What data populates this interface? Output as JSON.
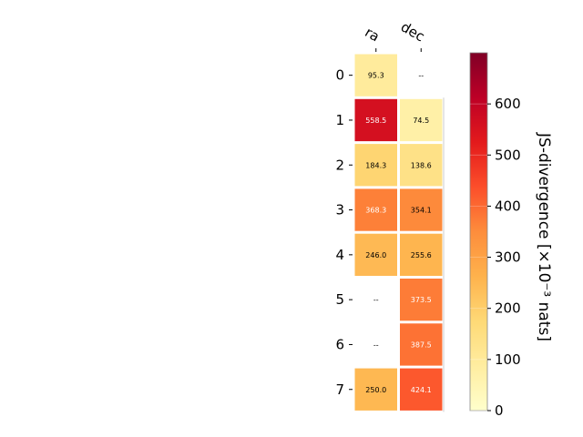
{
  "chart_data": {
    "type": "heatmap",
    "columns": [
      "ra",
      "dec"
    ],
    "rows": [
      "0",
      "1",
      "2",
      "3",
      "4",
      "5",
      "6",
      "7"
    ],
    "values": [
      [
        95.3,
        null
      ],
      [
        558.5,
        74.5
      ],
      [
        184.3,
        138.6
      ],
      [
        368.3,
        354.1
      ],
      [
        246.0,
        255.6
      ],
      [
        null,
        373.5
      ],
      [
        null,
        387.5
      ],
      [
        250.0,
        424.1
      ]
    ],
    "cell_labels": [
      [
        "95.3",
        "--"
      ],
      [
        "558.5",
        "74.5"
      ],
      [
        "184.3",
        "138.6"
      ],
      [
        "368.3",
        "354.1"
      ],
      [
        "246.0",
        "255.6"
      ],
      [
        "--",
        "373.5"
      ],
      [
        "--",
        "387.5"
      ],
      [
        "250.0",
        "424.1"
      ]
    ],
    "colorbar": {
      "label": "JS-divergence [×10⁻³ nats]",
      "range": [
        0,
        700
      ],
      "ticks": [
        0,
        100,
        200,
        300,
        400,
        500,
        600
      ],
      "colormap": "YlOrRd",
      "colors": [
        "#ffffcc",
        "#ffeda0",
        "#fed976",
        "#feb24c",
        "#fd8d3c",
        "#fc4e2a",
        "#e31a1c",
        "#bd0026",
        "#800026"
      ]
    }
  }
}
